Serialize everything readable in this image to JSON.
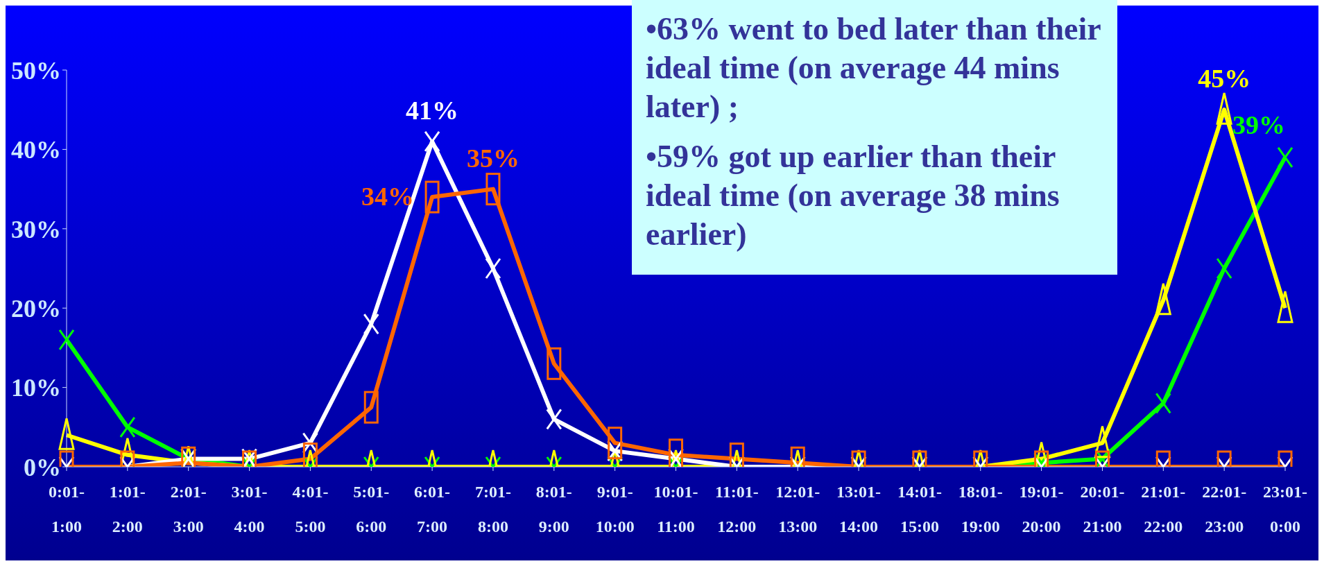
{
  "chart_data": {
    "type": "line",
    "categories": [
      "0:01-1:00",
      "1:01-2:00",
      "2:01-3:00",
      "3:01-4:00",
      "4:01-5:00",
      "5:01-6:00",
      "6:01-7:00",
      "7:01-8:00",
      "8:01-9:00",
      "9:01-10:00",
      "10:01-11:00",
      "11:01-12:00",
      "12:01-13:00",
      "13:01-14:00",
      "14:01-15:00",
      "18:01-19:00",
      "19:01-20:00",
      "20:01-21:00",
      "21:01-22:00",
      "22:01-23:00",
      "23:01-0:00"
    ],
    "series": [
      {
        "color": "#00ff00",
        "marker": "cross",
        "values": [
          16,
          5,
          1,
          0,
          0,
          0,
          0,
          0,
          0,
          0,
          0,
          0,
          0,
          0,
          0,
          0,
          0.5,
          1,
          8,
          25,
          39
        ],
        "value_labels": [
          null,
          null,
          null,
          null,
          null,
          null,
          null,
          null,
          null,
          null,
          null,
          null,
          null,
          null,
          null,
          null,
          null,
          null,
          null,
          null,
          "39%"
        ]
      },
      {
        "color": "#ffff00",
        "marker": "triangle",
        "values": [
          4,
          1.5,
          0.5,
          0,
          0,
          0,
          0,
          0,
          0,
          0,
          0,
          0,
          0,
          0,
          0,
          0,
          1,
          3,
          21,
          45,
          20
        ],
        "value_labels": [
          null,
          null,
          null,
          null,
          null,
          null,
          null,
          null,
          null,
          null,
          null,
          null,
          null,
          null,
          null,
          null,
          null,
          null,
          null,
          "45%",
          null
        ]
      },
      {
        "color": "#ffffff",
        "marker": "cross",
        "values": [
          0,
          0,
          1,
          1,
          3,
          18,
          41,
          25,
          6,
          2,
          1,
          0,
          0,
          0,
          0,
          0,
          0,
          0,
          0,
          0,
          0
        ],
        "value_labels": [
          null,
          null,
          null,
          null,
          null,
          null,
          "41%",
          null,
          null,
          null,
          null,
          null,
          null,
          null,
          null,
          null,
          null,
          null,
          null,
          null,
          null
        ]
      },
      {
        "color": "#ff6600",
        "marker": "square",
        "values": [
          0,
          0,
          0.5,
          0,
          1,
          7.5,
          34,
          35,
          13,
          3,
          1.5,
          1,
          0.5,
          0,
          0,
          0,
          0,
          0,
          0,
          0,
          0
        ],
        "value_labels": [
          null,
          null,
          null,
          null,
          null,
          null,
          "34%",
          "35%",
          null,
          null,
          null,
          null,
          null,
          null,
          null,
          null,
          null,
          null,
          null,
          null,
          null
        ]
      }
    ],
    "ylim": [
      0,
      50
    ],
    "yticks": [
      {
        "value": 0,
        "label": "0%"
      },
      {
        "value": 10,
        "label": "10%"
      },
      {
        "value": 20,
        "label": "20%"
      },
      {
        "value": 30,
        "label": "30%"
      },
      {
        "value": 40,
        "label": "40%"
      },
      {
        "value": 50,
        "label": "50%"
      }
    ],
    "grid": false,
    "legend": false,
    "annotations": [
      "•63% went to bed later than their ideal time (on average 44 mins later) ;",
      "•59% got up earlier than their ideal time (on average 38 mins earlier)"
    ]
  }
}
